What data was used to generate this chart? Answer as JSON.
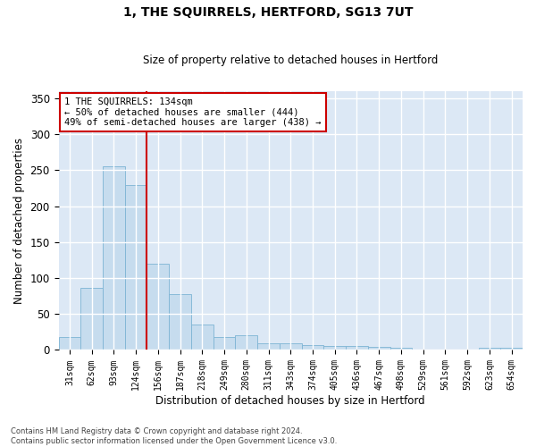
{
  "title": "1, THE SQUIRRELS, HERTFORD, SG13 7UT",
  "subtitle": "Size of property relative to detached houses in Hertford",
  "xlabel": "Distribution of detached houses by size in Hertford",
  "ylabel": "Number of detached properties",
  "categories": [
    "31sqm",
    "62sqm",
    "93sqm",
    "124sqm",
    "156sqm",
    "187sqm",
    "218sqm",
    "249sqm",
    "280sqm",
    "311sqm",
    "343sqm",
    "374sqm",
    "405sqm",
    "436sqm",
    "467sqm",
    "498sqm",
    "529sqm",
    "561sqm",
    "592sqm",
    "623sqm",
    "654sqm"
  ],
  "values": [
    18,
    87,
    255,
    230,
    120,
    78,
    35,
    18,
    20,
    9,
    9,
    7,
    6,
    5,
    4,
    3,
    0,
    0,
    0,
    3,
    3
  ],
  "bar_color": "#c6dcee",
  "bar_edge_color": "#7db4d4",
  "vline_x_idx": 3.5,
  "vline_color": "#cc0000",
  "annotation_text": "1 THE SQUIRRELS: 134sqm\n← 50% of detached houses are smaller (444)\n49% of semi-detached houses are larger (438) →",
  "annotation_box_color": "#ffffff",
  "annotation_box_edge_color": "#cc0000",
  "ylim": [
    0,
    360
  ],
  "yticks": [
    0,
    50,
    100,
    150,
    200,
    250,
    300,
    350
  ],
  "fig_bg_color": "#ffffff",
  "plot_bg_color": "#dce8f5",
  "grid_color": "#ffffff",
  "footer": "Contains HM Land Registry data © Crown copyright and database right 2024.\nContains public sector information licensed under the Open Government Licence v3.0."
}
